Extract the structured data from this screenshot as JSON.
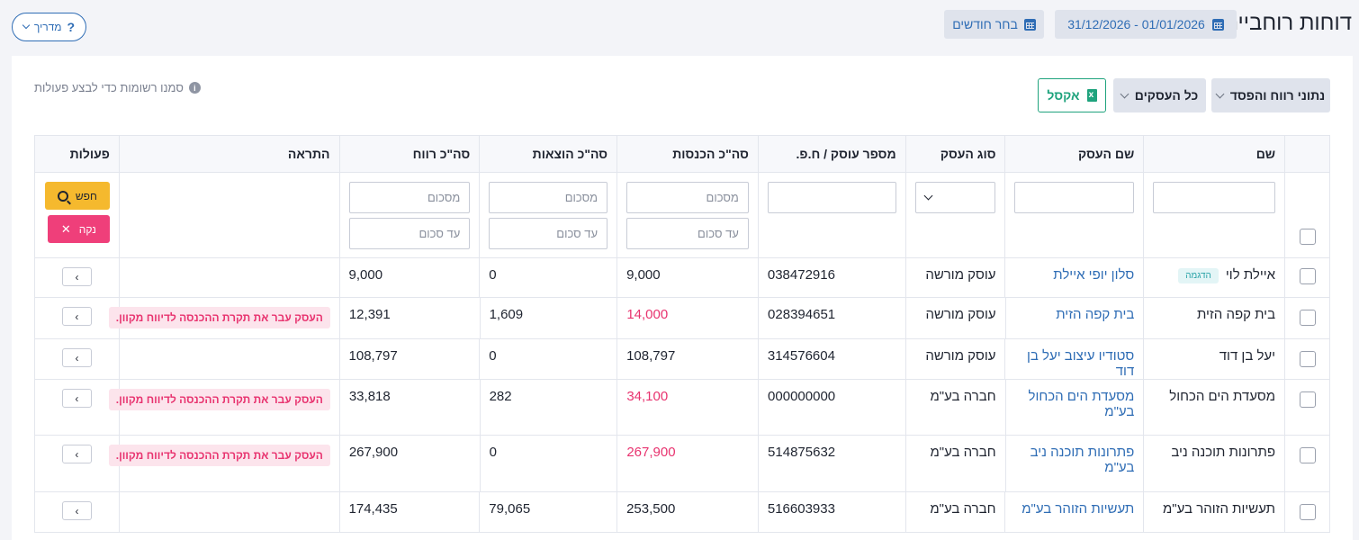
{
  "header": {
    "title": "דוחות רוחביים",
    "date_range": "31/12/2026 - 01/01/2026",
    "choose_months": "בחר חודשים",
    "guide": "מדריך"
  },
  "toolbar": {
    "profit_loss": "נתוני רווח והפסד",
    "all_businesses": "כל העסקים",
    "excel": "אקסל",
    "hint": "סמנו רשומות כדי לבצע פעולות"
  },
  "table": {
    "headers": {
      "name": "שם",
      "business_name": "שם העסק",
      "business_type": "סוג העסק",
      "business_number": "מספר עוסק / ח.פ.",
      "total_income": "סה\"כ הכנסות",
      "total_expenses": "סה\"כ הוצאות",
      "total_profit": "סה\"כ רווח",
      "warning": "התראה",
      "actions": "פעולות"
    },
    "filters": {
      "amount_placeholder": "מסכום",
      "to_amount_placeholder": "עד סכום",
      "search_label": "חפש",
      "clear_label": "נקה"
    },
    "demo_badge": "הדגמה",
    "rows": [
      {
        "name": "איילת לוי",
        "business": "סלון יופי איילת",
        "type": "עוסק מורשה",
        "number": "038472916",
        "income": "9,000",
        "expenses": "0",
        "profit": "9,000",
        "warning": ""
      },
      {
        "name": "בית קפה הזית",
        "business": "בית קפה הזית",
        "type": "עוסק מורשה",
        "number": "028394651",
        "income": "14,000",
        "expenses": "1,609",
        "profit": "12,391",
        "warning": "העסק עבר את תקרת ההכנסה לדיווח מקוון."
      },
      {
        "name": "יעל בן דוד",
        "business": "סטודיו עיצוב יעל בן דוד",
        "type": "עוסק מורשה",
        "number": "314576604",
        "income": "108,797",
        "expenses": "0",
        "profit": "108,797",
        "warning": ""
      },
      {
        "name": "מסעדת הים הכחול",
        "business": "מסעדת הים הכחול בע\"מ",
        "type": "חברה בע\"מ",
        "number": "000000000",
        "income": "34,100",
        "expenses": "282",
        "profit": "33,818",
        "warning": "העסק עבר את תקרת ההכנסה לדיווח מקוון."
      },
      {
        "name": "פתרונות תוכנה ניב",
        "business": "פתרונות תוכנה ניב בע\"מ",
        "type": "חברה בע\"מ",
        "number": "514875632",
        "income": "267,900",
        "expenses": "0",
        "profit": "267,900",
        "warning": "העסק עבר את תקרת ההכנסה לדיווח מקוון."
      },
      {
        "name": "תעשיות הזוהר בע\"מ",
        "business": "תעשיות הזוהר בע\"מ",
        "type": "חברה בע\"מ",
        "number": "516603933",
        "income": "253,500",
        "expenses": "79,065",
        "profit": "174,435",
        "warning": ""
      }
    ]
  },
  "colors": {
    "accent": "#2f6db5",
    "warning": "#e8336f",
    "excel": "#1fa37d",
    "search": "#f5b92e"
  }
}
